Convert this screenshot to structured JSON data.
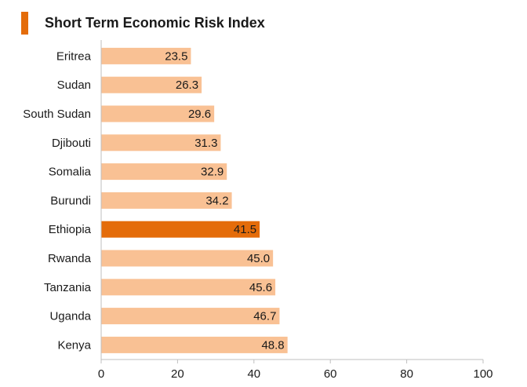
{
  "chart_data": {
    "type": "bar",
    "orientation": "horizontal",
    "title": "Short Term Economic Risk Index",
    "categories": [
      "Eritrea",
      "Sudan",
      "South Sudan",
      "Djibouti",
      "Somalia",
      "Burundi",
      "Ethiopia",
      "Rwanda",
      "Tanzania",
      "Uganda",
      "Kenya"
    ],
    "values": [
      23.5,
      26.3,
      29.6,
      31.3,
      32.9,
      34.2,
      41.5,
      45.0,
      45.6,
      46.7,
      48.8
    ],
    "value_labels": [
      "23.5",
      "26.3",
      "29.6",
      "31.3",
      "32.9",
      "34.2",
      "41.5",
      "45.0",
      "45.6",
      "46.7",
      "48.8"
    ],
    "highlight": "Ethiopia",
    "xlim": [
      0,
      100
    ],
    "xticks": [
      "0",
      "20",
      "40",
      "60",
      "80",
      "100"
    ],
    "grid": false,
    "colors": {
      "bar": "#f9c194",
      "highlight": "#e46c0a",
      "accent": "#e46c0a",
      "axis": "#bfbfbf",
      "text": "#1a1a1a"
    }
  }
}
